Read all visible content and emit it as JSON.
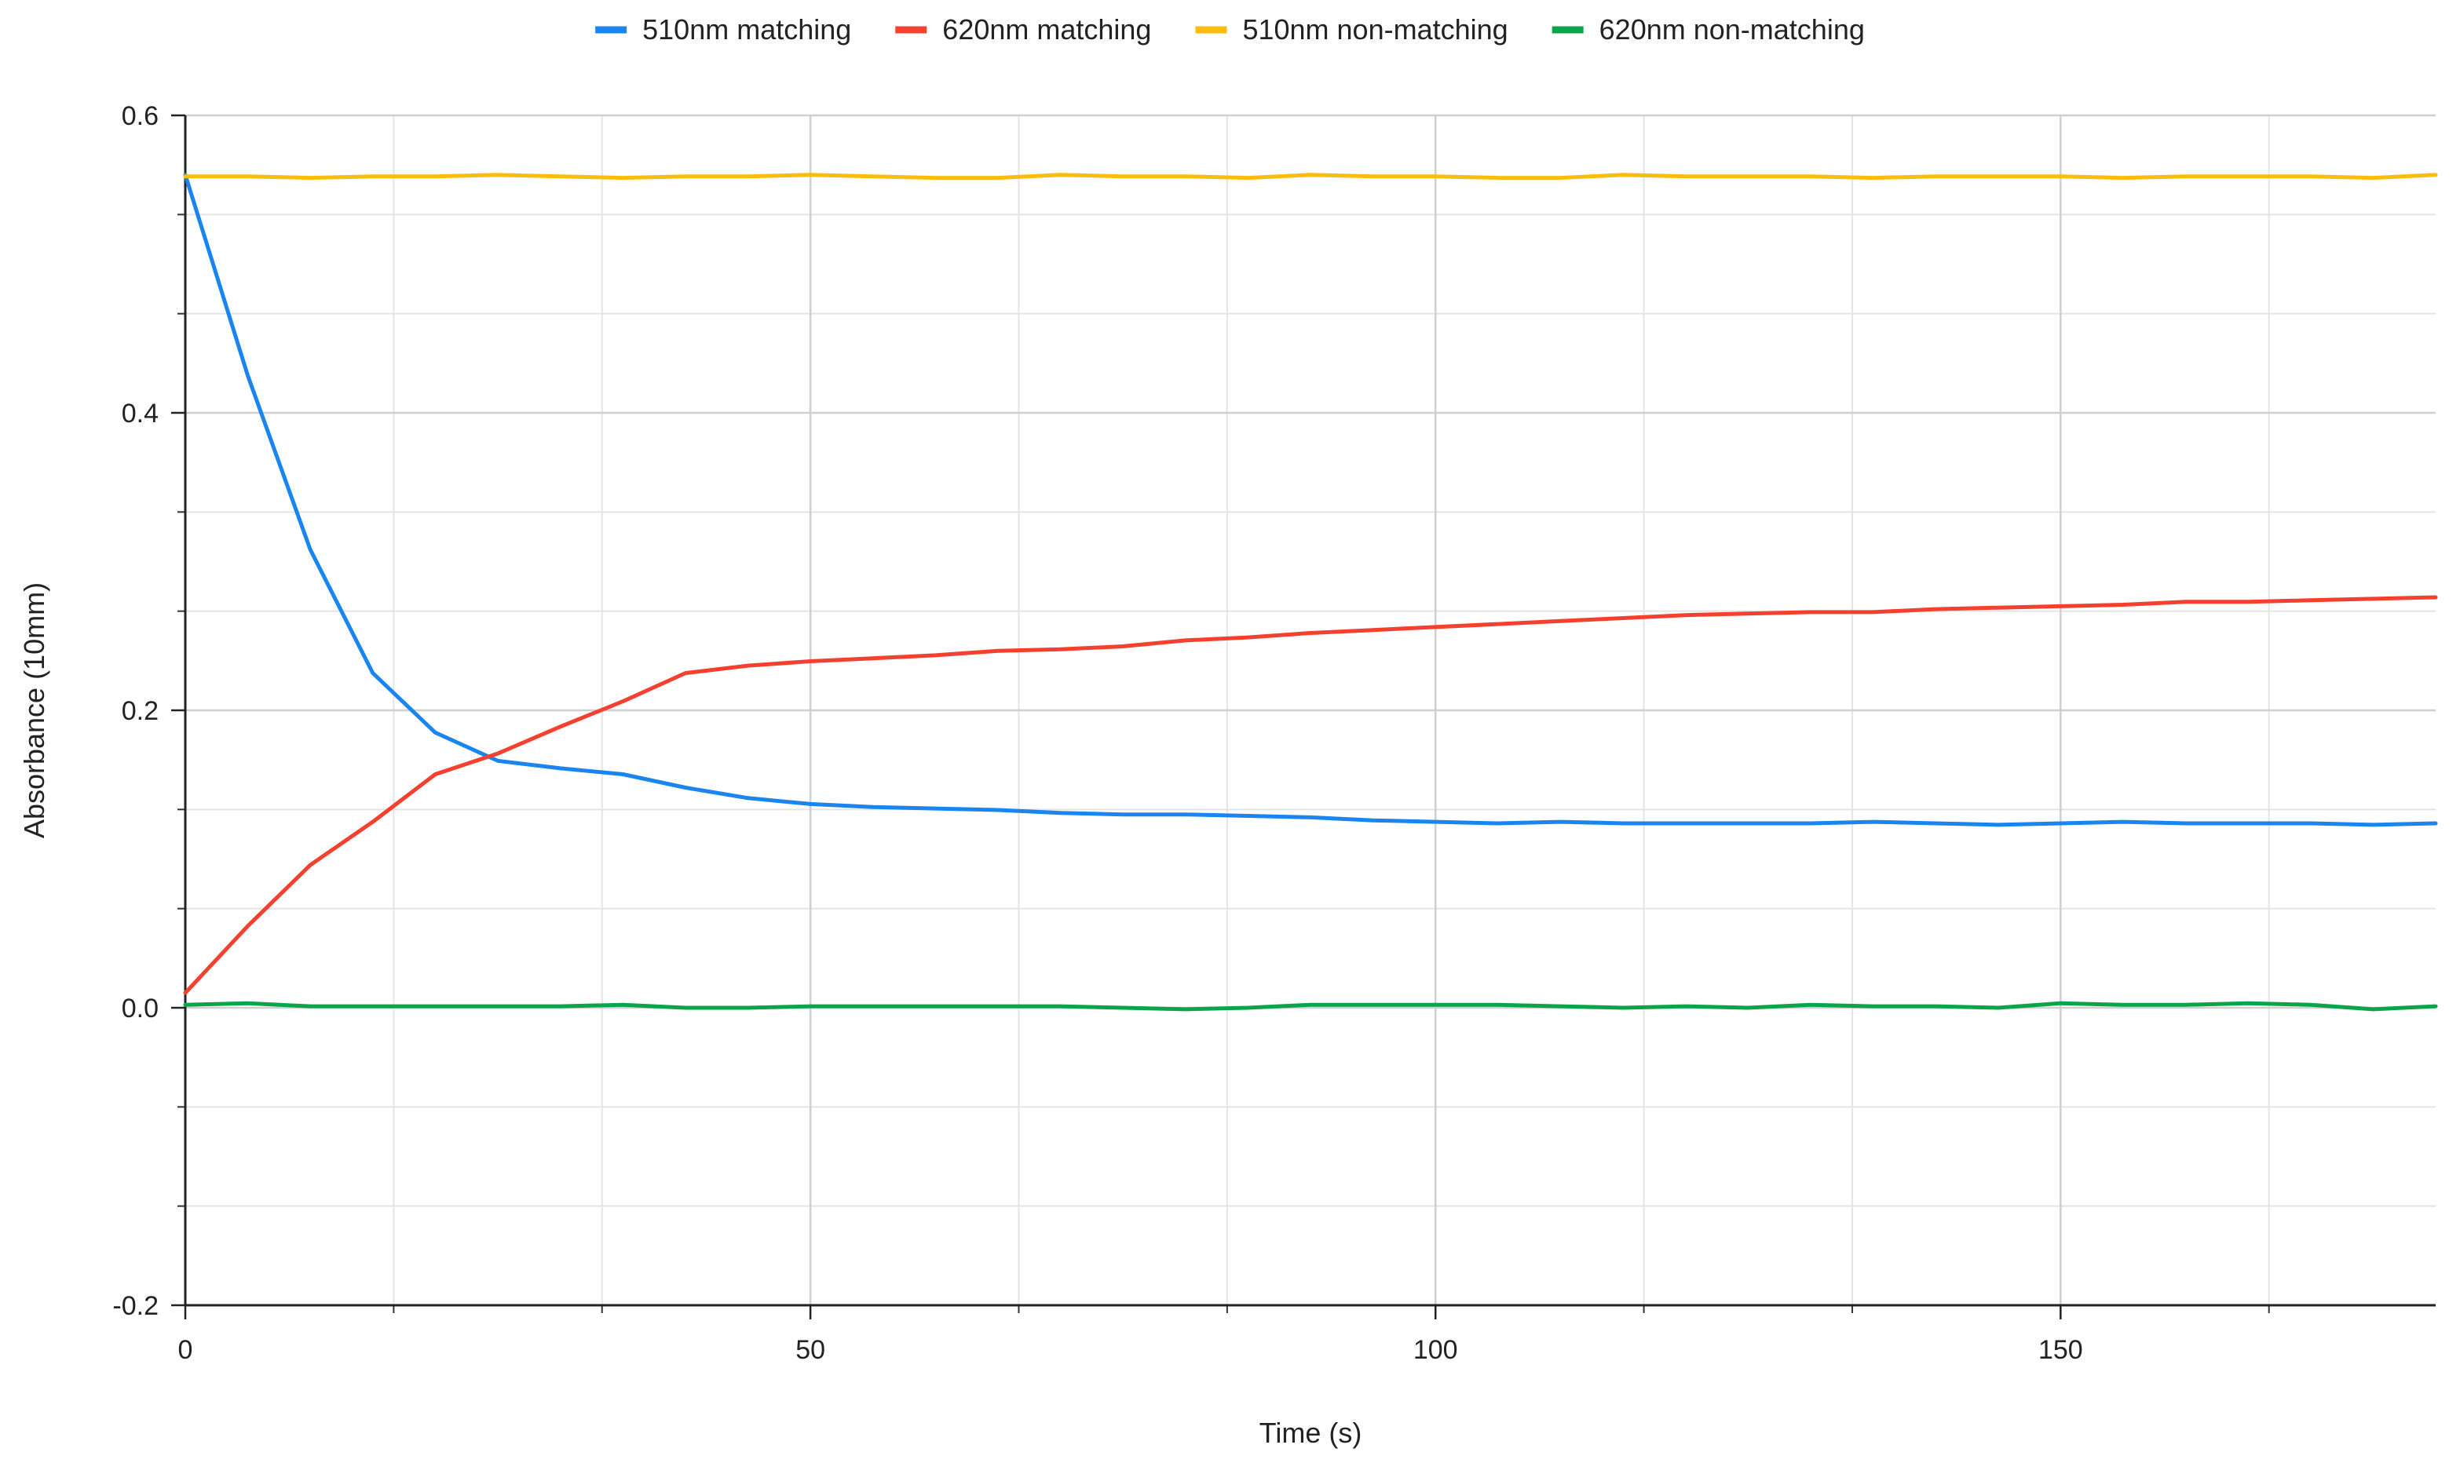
{
  "chart_data": {
    "type": "line",
    "title": "",
    "xlabel": "Time (s)",
    "ylabel": "Absorbance (10mm)",
    "xlim": [
      0,
      180
    ],
    "ylim": [
      -0.2,
      0.6
    ],
    "x_ticks": [
      0,
      50,
      100,
      150
    ],
    "y_ticks": [
      -0.2,
      0.0,
      0.2,
      0.4,
      0.6
    ],
    "x_tick_labels": [
      "0",
      "50",
      "100",
      "150"
    ],
    "y_tick_labels": [
      "-0.2",
      "0.0",
      "0.2",
      "0.4",
      "0.6"
    ],
    "grid": true,
    "legend_position": "top",
    "x": [
      0,
      5,
      10,
      15,
      20,
      25,
      30,
      35,
      40,
      45,
      50,
      55,
      60,
      65,
      70,
      75,
      80,
      85,
      90,
      95,
      100,
      105,
      110,
      115,
      120,
      125,
      130,
      135,
      140,
      145,
      150,
      155,
      160,
      165,
      170,
      175,
      180
    ],
    "series": [
      {
        "name": "510nm matching",
        "color": "#1a85ef",
        "values": [
          0.56,
          0.425,
          0.308,
          0.225,
          0.185,
          0.166,
          0.161,
          0.157,
          0.148,
          0.141,
          0.137,
          0.135,
          0.134,
          0.133,
          0.131,
          0.13,
          0.13,
          0.129,
          0.128,
          0.126,
          0.125,
          0.124,
          0.125,
          0.124,
          0.124,
          0.124,
          0.124,
          0.125,
          0.124,
          0.123,
          0.124,
          0.125,
          0.124,
          0.124,
          0.124,
          0.123,
          0.124
        ]
      },
      {
        "name": "620nm matching",
        "color": "#f4402f",
        "values": [
          0.01,
          0.055,
          0.096,
          0.125,
          0.157,
          0.171,
          0.189,
          0.206,
          0.225,
          0.23,
          0.233,
          0.235,
          0.237,
          0.24,
          0.241,
          0.243,
          0.247,
          0.249,
          0.252,
          0.254,
          0.256,
          0.258,
          0.26,
          0.262,
          0.264,
          0.265,
          0.266,
          0.266,
          0.268,
          0.269,
          0.27,
          0.271,
          0.273,
          0.273,
          0.274,
          0.275,
          0.276
        ]
      },
      {
        "name": "510nm non-matching",
        "color": "#fbbd0d",
        "values": [
          0.559,
          0.559,
          0.558,
          0.559,
          0.559,
          0.56,
          0.559,
          0.558,
          0.559,
          0.559,
          0.56,
          0.559,
          0.558,
          0.558,
          0.56,
          0.559,
          0.559,
          0.558,
          0.56,
          0.559,
          0.559,
          0.558,
          0.558,
          0.56,
          0.559,
          0.559,
          0.559,
          0.558,
          0.559,
          0.559,
          0.559,
          0.558,
          0.559,
          0.559,
          0.559,
          0.558,
          0.56
        ]
      },
      {
        "name": "620nm non-matching",
        "color": "#0aa44a",
        "values": [
          0.002,
          0.003,
          0.001,
          0.001,
          0.001,
          0.001,
          0.001,
          0.002,
          0.0,
          0.0,
          0.001,
          0.001,
          0.001,
          0.001,
          0.001,
          0.0,
          -0.001,
          0.0,
          0.002,
          0.002,
          0.002,
          0.002,
          0.001,
          0.0,
          0.001,
          0.0,
          0.002,
          0.001,
          0.001,
          0.0,
          0.003,
          0.002,
          0.002,
          0.003,
          0.002,
          -0.001,
          0.001
        ]
      }
    ]
  }
}
